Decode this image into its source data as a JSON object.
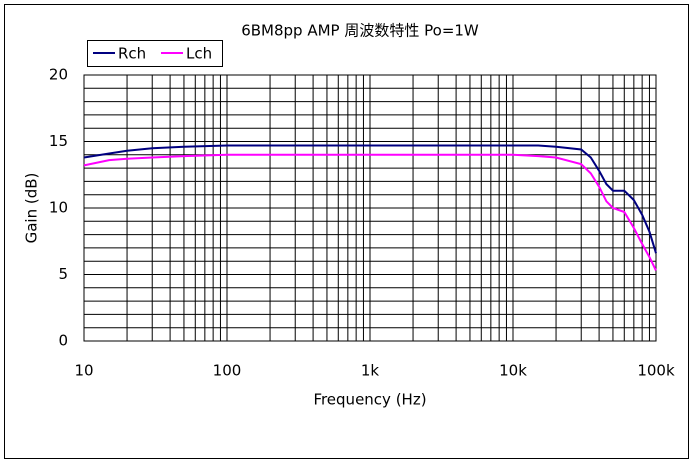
{
  "chart_data": {
    "type": "line",
    "title": "6BM8pp AMP 周波数特性 Po=1W",
    "xlabel": "Frequency (Hz)",
    "ylabel": "Gain (dB)",
    "x": [
      10,
      15,
      20,
      30,
      50,
      100,
      1000,
      10000,
      15000,
      20000,
      30000,
      35000,
      40000,
      45000,
      50000,
      60000,
      70000,
      80000,
      90000,
      100000
    ],
    "series": [
      {
        "name": "Rch",
        "color": "#000080",
        "values": [
          13.8,
          14.1,
          14.3,
          14.5,
          14.6,
          14.7,
          14.7,
          14.7,
          14.7,
          14.6,
          14.4,
          13.8,
          12.8,
          11.8,
          11.3,
          11.3,
          10.6,
          9.5,
          8.2,
          6.6
        ]
      },
      {
        "name": "Lch",
        "color": "#ff00ff",
        "values": [
          13.2,
          13.6,
          13.7,
          13.8,
          13.9,
          14.0,
          14.0,
          14.0,
          13.9,
          13.8,
          13.3,
          12.6,
          11.6,
          10.5,
          10.0,
          9.7,
          8.5,
          7.3,
          6.3,
          5.3
        ]
      }
    ],
    "xscale": "log",
    "xlim": [
      10,
      100000
    ],
    "xticks": [
      10,
      100,
      {
        "value": 1000,
        "label": "1k"
      },
      {
        "value": 10000,
        "label": "10k"
      },
      {
        "value": 100000,
        "label": "100k"
      }
    ],
    "xminorticks": [
      20,
      30,
      40,
      50,
      60,
      70,
      80,
      90,
      200,
      300,
      400,
      500,
      600,
      700,
      800,
      900,
      2000,
      3000,
      4000,
      5000,
      6000,
      7000,
      8000,
      9000,
      20000,
      30000,
      40000,
      50000,
      60000,
      70000,
      80000,
      90000
    ],
    "ylim": [
      0,
      20
    ],
    "yticks": [
      0,
      5,
      10,
      15,
      20
    ],
    "yminorticks": [
      1,
      2,
      3,
      4,
      6,
      7,
      8,
      9,
      11,
      12,
      13,
      14,
      16,
      17,
      18,
      19
    ],
    "grid": true,
    "legend": "top-left"
  }
}
